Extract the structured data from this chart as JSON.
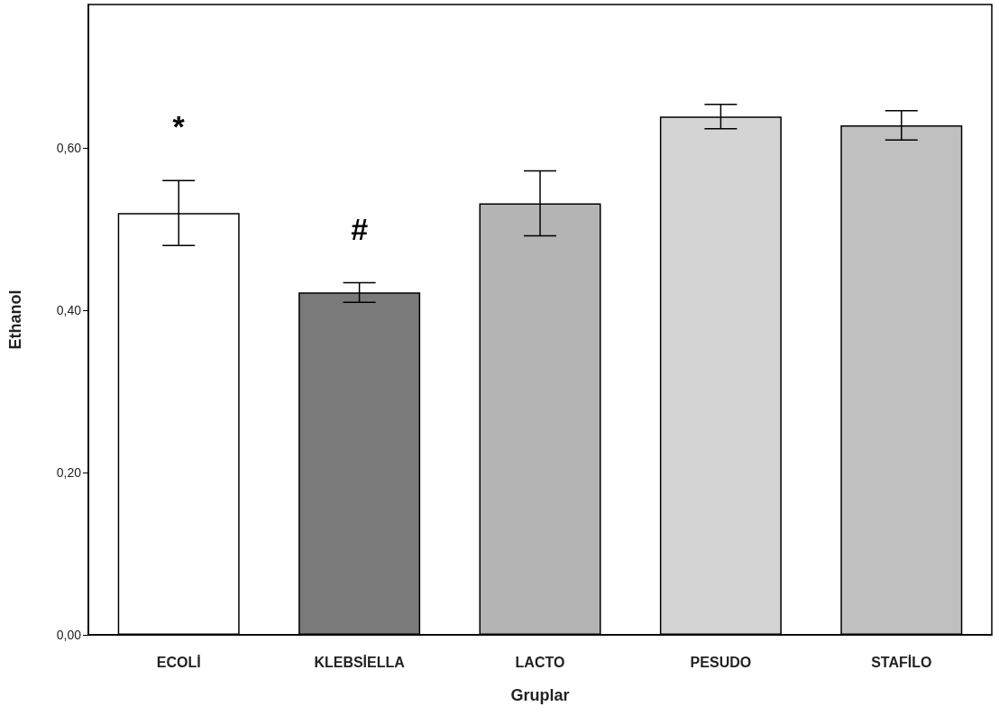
{
  "chart_data": {
    "type": "bar",
    "xlabel": "Gruplar",
    "ylabel": "Ethanol",
    "categories": [
      "ECOLİ",
      "KLEBSİELLA",
      "LACTO",
      "PESUDO",
      "STAFİLO"
    ],
    "values": [
      0.52,
      0.422,
      0.532,
      0.639,
      0.628
    ],
    "errors": [
      0.04,
      0.012,
      0.04,
      0.015,
      0.018
    ],
    "colors": [
      "#ffffff",
      "#7a7a7a",
      "#b4b4b4",
      "#d4d4d4",
      "#c0c0c0"
    ],
    "ylim": [
      0,
      0.777
    ],
    "yticks": [
      {
        "value": 0,
        "label": "0,00"
      },
      {
        "value": 0.2,
        "label": "0,20"
      },
      {
        "value": 0.4,
        "label": "0,40"
      },
      {
        "value": 0.6,
        "label": "0,60"
      }
    ],
    "annotations": [
      "*",
      "#"
    ],
    "grid": false
  }
}
